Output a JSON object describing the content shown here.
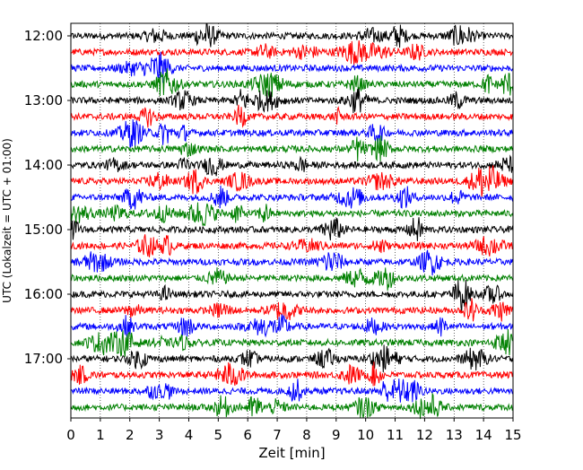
{
  "chart_data": {
    "type": "line",
    "title": "",
    "xlabel": "Zeit  [min]",
    "ylabel": "UTC (Lokalzeit = UTC + 01:00)",
    "xlim": [
      0,
      15
    ],
    "x_ticks": [
      "0",
      "1",
      "2",
      "3",
      "4",
      "5",
      "6",
      "7",
      "8",
      "9",
      "10",
      "11",
      "12",
      "13",
      "14",
      "15"
    ],
    "y_ticks": [
      "12:00",
      "13:00",
      "14:00",
      "15:00",
      "16:00",
      "17:00"
    ],
    "grid": "vertical dotted lines at each minute",
    "legend": "none",
    "trace_colors": [
      "#000000",
      "#ff0000",
      "#0000ff",
      "#008000"
    ],
    "series": [
      {
        "start": "12:00",
        "color": "#000000",
        "amplitude": 0.22
      },
      {
        "start": "12:15",
        "color": "#ff0000",
        "amplitude": 0.22
      },
      {
        "start": "12:30",
        "color": "#0000ff",
        "amplitude": 0.22
      },
      {
        "start": "12:45",
        "color": "#008000",
        "amplitude": 0.22
      },
      {
        "start": "13:00",
        "color": "#000000",
        "amplitude": 0.22
      },
      {
        "start": "13:15",
        "color": "#ff0000",
        "amplitude": 0.22
      },
      {
        "start": "13:30",
        "color": "#0000ff",
        "amplitude": 0.22
      },
      {
        "start": "13:45",
        "color": "#008000",
        "amplitude": 0.22
      },
      {
        "start": "14:00",
        "color": "#000000",
        "amplitude": 0.22
      },
      {
        "start": "14:15",
        "color": "#ff0000",
        "amplitude": 0.22
      },
      {
        "start": "14:30",
        "color": "#0000ff",
        "amplitude": 0.22
      },
      {
        "start": "14:45",
        "color": "#008000",
        "amplitude": 0.22
      },
      {
        "start": "15:00",
        "color": "#000000",
        "amplitude": 0.22
      },
      {
        "start": "15:15",
        "color": "#ff0000",
        "amplitude": 0.22
      },
      {
        "start": "15:30",
        "color": "#0000ff",
        "amplitude": 0.22
      },
      {
        "start": "15:45",
        "color": "#008000",
        "amplitude": 0.22
      },
      {
        "start": "16:00",
        "color": "#000000",
        "amplitude": 0.22
      },
      {
        "start": "16:15",
        "color": "#ff0000",
        "amplitude": 0.22
      },
      {
        "start": "16:30",
        "color": "#0000ff",
        "amplitude": 0.22
      },
      {
        "start": "16:45",
        "color": "#008000",
        "amplitude": 0.22
      },
      {
        "start": "17:00",
        "color": "#000000",
        "amplitude": 0.22
      },
      {
        "start": "17:15",
        "color": "#ff0000",
        "amplitude": 0.22
      },
      {
        "start": "17:30",
        "color": "#0000ff",
        "amplitude": 0.22
      },
      {
        "start": "17:45",
        "color": "#008000",
        "amplitude": 0.22
      }
    ]
  }
}
